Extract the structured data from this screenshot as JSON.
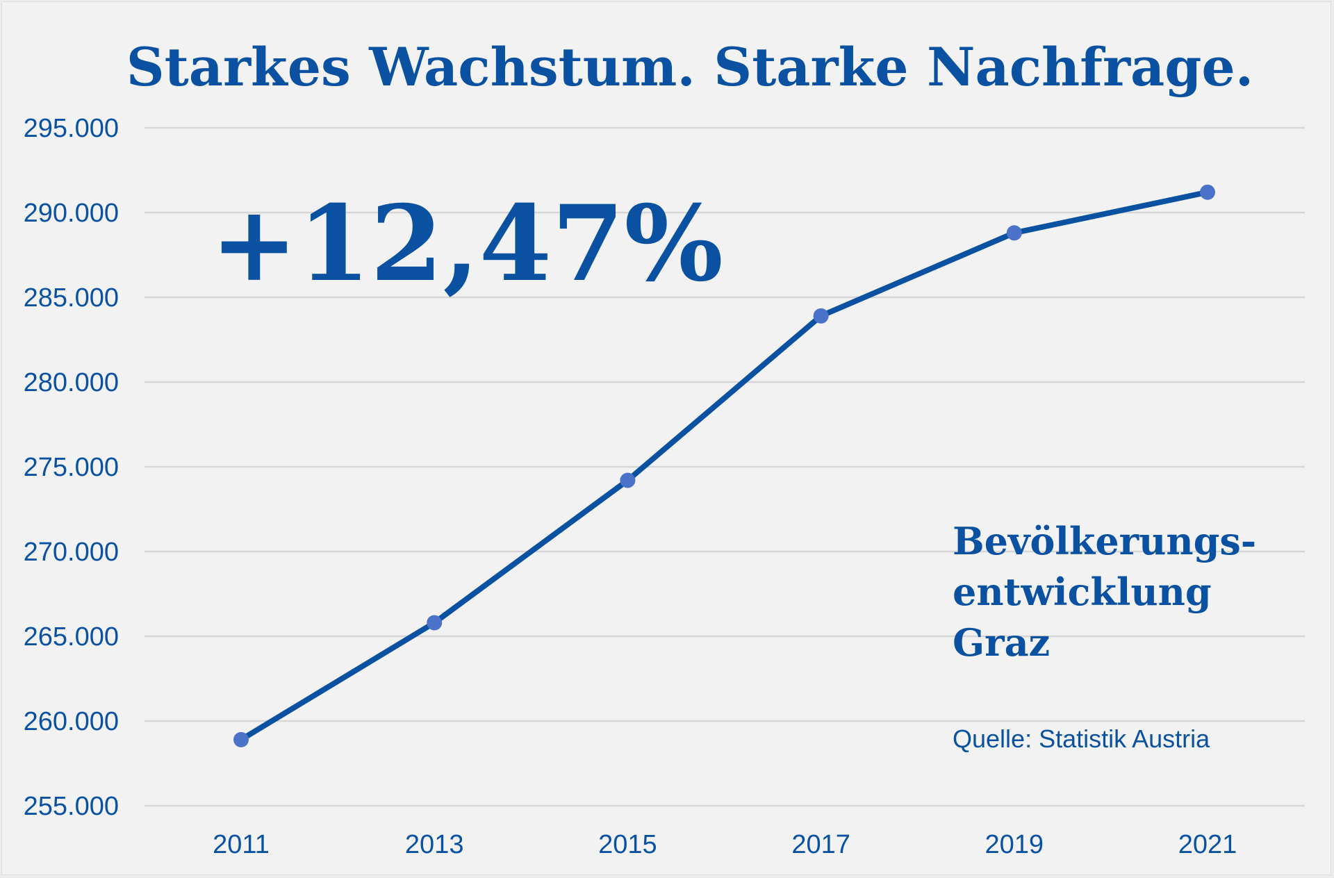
{
  "chart_data": {
    "type": "line",
    "title": "Starkes Wachstum. Starke Nachfrage.",
    "highlight": "+12,47%",
    "annotation_lines": [
      "Bevölkerungs-",
      "entwicklung",
      "Graz"
    ],
    "source": "Quelle: Statistik Austria",
    "x": [
      "2011",
      "2013",
      "2015",
      "2017",
      "2019",
      "2021"
    ],
    "y_ticks": [
      "255.000",
      "260.000",
      "265.000",
      "270.000",
      "275.000",
      "280.000",
      "285.000",
      "290.000",
      "295.000"
    ],
    "ylim": [
      255000,
      295000
    ],
    "grid": true,
    "series": [
      {
        "values": [
          258900,
          265800,
          274200,
          283900,
          288800,
          291200
        ]
      }
    ],
    "colors": {
      "line": "#0a52a1",
      "point": "#4a72c8",
      "text": "#0a52a1"
    }
  }
}
